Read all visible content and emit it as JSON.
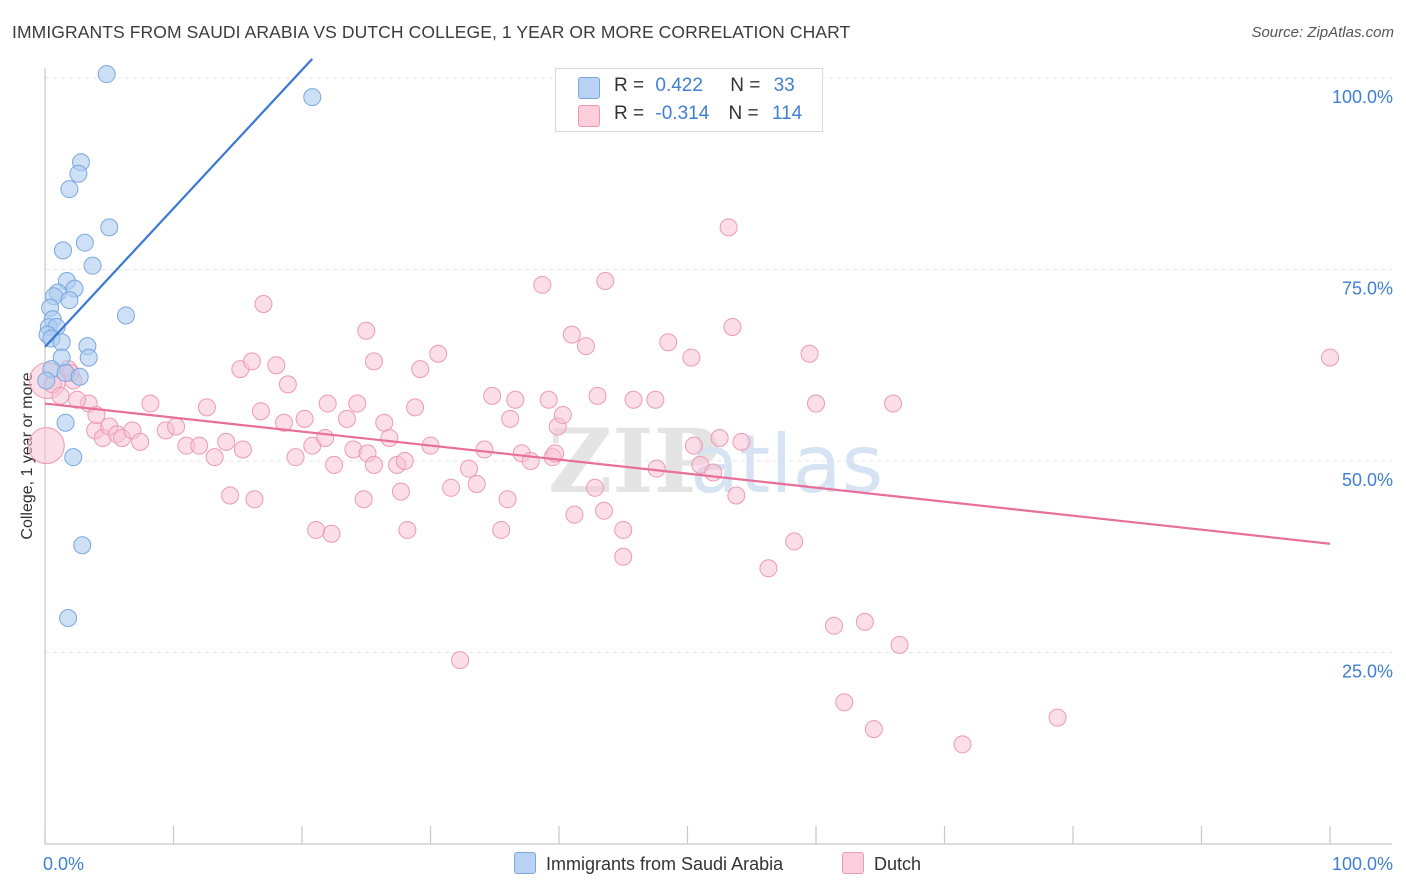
{
  "title": "IMMIGRANTS FROM SAUDI ARABIA VS DUTCH COLLEGE, 1 YEAR OR MORE CORRELATION CHART",
  "source": "Source: ZipAtlas.com",
  "watermark": {
    "zip": "ZIP",
    "atlas": "atlas"
  },
  "legend_top": {
    "r_label": "R =",
    "n_label": "N =",
    "series1": {
      "r": "0.422",
      "n": "33"
    },
    "series2": {
      "r": "-0.314",
      "n": "114"
    }
  },
  "legend_bottom": {
    "series1": "Immigrants from Saudi Arabia",
    "series2": "Dutch"
  },
  "colors": {
    "blue_fill": "#aecbf0",
    "blue_stroke": "#7aa7e0",
    "blue_line": "#3a78d4",
    "pink_fill": "#f8c3d3",
    "pink_stroke": "#ee9ab4",
    "pink_line": "#e76f98",
    "tick_label": "#3f7fd1",
    "grid": "#e6e6e6"
  },
  "chart_data": {
    "type": "scatter",
    "xlabel": "",
    "ylabel": "College, 1 year or more",
    "xlim": [
      0,
      100
    ],
    "ylim": [
      0,
      103
    ],
    "x_ticks": [
      "0.0%",
      "100.0%"
    ],
    "y_ticks": [
      {
        "value": 25,
        "label": "25.0%"
      },
      {
        "value": 50,
        "label": "50.0%"
      },
      {
        "value": 75,
        "label": "75.0%"
      },
      {
        "value": 100,
        "label": "100.0%"
      }
    ],
    "grid": true,
    "legend": "top-center",
    "series": [
      {
        "name": "Immigrants from Saudi Arabia",
        "color": "#aecbf0",
        "r": 0.422,
        "n": 33,
        "trend": {
          "x": [
            0.0,
            20.8
          ],
          "y": [
            64.9,
            102.5
          ]
        },
        "points": [
          [
            4.8,
            100.5
          ],
          [
            20.8,
            97.5
          ],
          [
            2.8,
            89.0
          ],
          [
            2.6,
            87.5
          ],
          [
            1.9,
            85.5
          ],
          [
            5.0,
            80.5
          ],
          [
            3.1,
            78.5
          ],
          [
            1.4,
            77.5
          ],
          [
            3.7,
            75.5
          ],
          [
            1.7,
            73.5
          ],
          [
            2.3,
            72.5
          ],
          [
            1.0,
            72.0
          ],
          [
            0.7,
            71.5
          ],
          [
            1.9,
            71.0
          ],
          [
            0.4,
            70.0
          ],
          [
            6.3,
            69.0
          ],
          [
            0.6,
            68.5
          ],
          [
            0.3,
            67.5
          ],
          [
            0.9,
            67.5
          ],
          [
            0.2,
            66.5
          ],
          [
            0.5,
            66.0
          ],
          [
            1.3,
            65.5
          ],
          [
            3.3,
            65.0
          ],
          [
            3.4,
            63.5
          ],
          [
            1.3,
            63.5
          ],
          [
            0.5,
            62.0
          ],
          [
            1.6,
            61.5
          ],
          [
            2.7,
            61.0
          ],
          [
            0.1,
            60.5
          ],
          [
            1.6,
            55.0
          ],
          [
            2.2,
            50.5
          ],
          [
            2.9,
            39.0
          ],
          [
            1.8,
            29.5
          ]
        ]
      },
      {
        "name": "Dutch",
        "color": "#f8c3d3",
        "r": -0.314,
        "n": 114,
        "trend": {
          "x": [
            0.0,
            100.0
          ],
          "y": [
            57.5,
            39.2
          ]
        },
        "points": [
          [
            0.2,
            60.5
          ],
          [
            0.1,
            52.0
          ],
          [
            1.8,
            62.0
          ],
          [
            2.2,
            60.5
          ],
          [
            2.0,
            61.5
          ],
          [
            3.4,
            57.5
          ],
          [
            3.9,
            54.0
          ],
          [
            4.5,
            53.0
          ],
          [
            5.0,
            54.5
          ],
          [
            5.6,
            53.5
          ],
          [
            6.0,
            53.0
          ],
          [
            6.8,
            54.0
          ],
          [
            7.4,
            52.5
          ],
          [
            8.2,
            57.5
          ],
          [
            9.4,
            54.0
          ],
          [
            10.2,
            54.5
          ],
          [
            11.0,
            52.0
          ],
          [
            12.0,
            52.0
          ],
          [
            12.6,
            57.0
          ],
          [
            13.2,
            50.5
          ],
          [
            14.1,
            52.5
          ],
          [
            14.4,
            45.5
          ],
          [
            15.2,
            62.0
          ],
          [
            15.4,
            51.5
          ],
          [
            16.1,
            63.0
          ],
          [
            16.8,
            56.5
          ],
          [
            16.3,
            45.0
          ],
          [
            17.0,
            70.5
          ],
          [
            18.0,
            62.5
          ],
          [
            18.6,
            55.0
          ],
          [
            18.9,
            60.0
          ],
          [
            19.5,
            50.5
          ],
          [
            20.2,
            55.5
          ],
          [
            20.8,
            52.0
          ],
          [
            21.1,
            41.0
          ],
          [
            21.8,
            53.0
          ],
          [
            22.3,
            40.5
          ],
          [
            22.5,
            49.5
          ],
          [
            22.0,
            57.5
          ],
          [
            23.5,
            55.5
          ],
          [
            24.0,
            51.5
          ],
          [
            24.3,
            57.5
          ],
          [
            24.8,
            45.0
          ],
          [
            25.1,
            51.0
          ],
          [
            25.6,
            49.5
          ],
          [
            25.0,
            67.0
          ],
          [
            25.6,
            63.0
          ],
          [
            26.4,
            55.0
          ],
          [
            26.8,
            53.0
          ],
          [
            27.4,
            49.5
          ],
          [
            28.0,
            50.0
          ],
          [
            27.7,
            46.0
          ],
          [
            28.2,
            41.0
          ],
          [
            28.8,
            57.0
          ],
          [
            29.2,
            62.0
          ],
          [
            30.0,
            52.0
          ],
          [
            30.6,
            64.0
          ],
          [
            31.6,
            46.5
          ],
          [
            32.3,
            24.0
          ],
          [
            33.0,
            49.0
          ],
          [
            33.6,
            47.0
          ],
          [
            34.2,
            51.5
          ],
          [
            34.8,
            58.5
          ],
          [
            35.5,
            41.0
          ],
          [
            36.0,
            45.0
          ],
          [
            36.2,
            55.5
          ],
          [
            36.6,
            58.0
          ],
          [
            37.1,
            51.0
          ],
          [
            37.8,
            50.0
          ],
          [
            38.7,
            73.0
          ],
          [
            39.2,
            58.0
          ],
          [
            39.5,
            50.5
          ],
          [
            39.7,
            51.0
          ],
          [
            39.9,
            54.5
          ],
          [
            40.3,
            56.0
          ],
          [
            41.0,
            66.5
          ],
          [
            41.2,
            43.0
          ],
          [
            42.1,
            65.0
          ],
          [
            43.0,
            58.5
          ],
          [
            42.8,
            46.5
          ],
          [
            43.5,
            43.5
          ],
          [
            43.6,
            73.5
          ],
          [
            45.0,
            41.0
          ],
          [
            45.0,
            37.5
          ],
          [
            45.8,
            58.0
          ],
          [
            47.5,
            58.0
          ],
          [
            47.6,
            49.0
          ],
          [
            48.5,
            65.5
          ],
          [
            50.3,
            63.5
          ],
          [
            50.5,
            52.0
          ],
          [
            51.0,
            49.5
          ],
          [
            52.0,
            48.5
          ],
          [
            52.5,
            53.0
          ],
          [
            53.2,
            80.5
          ],
          [
            53.5,
            67.5
          ],
          [
            53.8,
            45.5
          ],
          [
            54.2,
            52.5
          ],
          [
            56.3,
            36.0
          ],
          [
            58.3,
            39.5
          ],
          [
            59.5,
            64.0
          ],
          [
            60.0,
            57.5
          ],
          [
            61.4,
            28.5
          ],
          [
            62.2,
            18.5
          ],
          [
            63.8,
            29.0
          ],
          [
            64.5,
            15.0
          ],
          [
            66.5,
            26.0
          ],
          [
            66.0,
            57.5
          ],
          [
            71.4,
            13.0
          ],
          [
            78.8,
            16.5
          ],
          [
            100.0,
            63.5
          ],
          [
            0.6,
            60.0
          ],
          [
            1.2,
            58.5
          ],
          [
            2.5,
            58.0
          ],
          [
            4.0,
            56.0
          ]
        ]
      }
    ]
  }
}
